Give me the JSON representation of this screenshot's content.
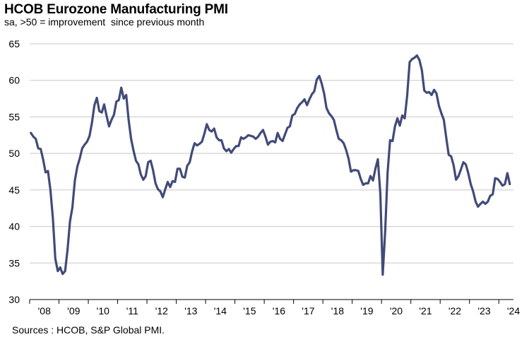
{
  "title": "HCOB Eurozone Manufacturing PMI",
  "subtitle": "sa, >50 = improvement  since previous month",
  "source": "Sources : HCOB, S&P Global PMI.",
  "line_color": "#414b79",
  "grid_color": "#c8c8c8",
  "chart_data": {
    "type": "line",
    "title": "HCOB Eurozone Manufacturing PMI",
    "xlabel": "",
    "ylabel": "",
    "grid": true,
    "ylim": [
      30,
      65
    ],
    "xlim": [
      2008.0,
      2024.5
    ],
    "y_ticks": [
      30,
      35,
      40,
      45,
      50,
      55,
      60,
      65
    ],
    "x_tick_labels": [
      "'08",
      "'09",
      "'10",
      "'11",
      "'12",
      "'13",
      "'14",
      "'15",
      "'16",
      "'17",
      "'18",
      "'19",
      "'20",
      "'21",
      "'22",
      "'23",
      "'24"
    ],
    "series": [
      {
        "name": "HCOB Eurozone Manufacturing PMI",
        "x_start": 2008.0,
        "frequency": "monthly",
        "values": [
          52.8,
          52.3,
          52.0,
          50.7,
          50.6,
          49.2,
          47.4,
          47.6,
          45.0,
          41.1,
          35.6,
          33.9,
          34.4,
          33.5,
          33.9,
          36.8,
          40.7,
          42.6,
          46.3,
          48.2,
          49.3,
          50.7,
          51.2,
          51.6,
          52.4,
          54.2,
          56.6,
          57.6,
          55.8,
          55.6,
          56.7,
          55.1,
          53.7,
          54.6,
          55.3,
          57.1,
          57.3,
          59.0,
          57.5,
          58.0,
          54.6,
          52.0,
          50.4,
          49.0,
          48.5,
          47.1,
          46.4,
          46.9,
          48.8,
          49.0,
          47.7,
          45.9,
          45.1,
          44.8,
          44.0,
          45.1,
          46.1,
          45.4,
          46.2,
          46.1,
          47.9,
          47.9,
          46.8,
          46.7,
          48.3,
          48.8,
          50.3,
          51.4,
          51.1,
          51.3,
          51.6,
          52.7,
          54.0,
          53.2,
          53.0,
          53.4,
          52.2,
          51.8,
          51.8,
          50.7,
          50.3,
          50.6,
          50.1,
          50.6,
          51.0,
          51.0,
          52.2,
          52.0,
          52.2,
          52.5,
          52.4,
          52.3,
          52.0,
          52.3,
          52.8,
          53.2,
          52.3,
          51.2,
          51.6,
          51.7,
          51.5,
          52.8,
          52.0,
          51.7,
          52.6,
          53.5,
          53.7,
          55.2,
          55.4,
          56.2,
          56.7,
          57.0,
          57.4,
          56.6,
          57.4,
          58.1,
          58.5,
          60.1,
          60.6,
          59.6,
          58.2,
          56.2,
          55.5,
          55.1,
          54.6,
          53.2,
          52.0,
          51.8,
          51.4,
          50.5,
          49.3,
          47.5,
          47.7,
          47.7,
          47.6,
          46.5,
          45.7,
          45.9,
          45.9,
          46.9,
          46.3,
          47.9,
          49.2,
          44.5,
          33.4,
          39.4,
          47.4,
          51.8,
          51.7,
          53.7,
          54.8,
          53.8,
          55.2,
          54.8,
          57.9,
          62.5,
          62.9,
          63.1,
          63.4,
          62.8,
          61.4,
          58.6,
          58.3,
          58.4,
          58.0,
          58.7,
          58.2,
          56.5,
          55.5,
          54.6,
          52.1,
          49.8,
          49.6,
          48.4,
          46.4,
          46.9,
          47.8,
          48.8,
          48.5,
          47.3,
          45.8,
          44.8,
          43.4,
          42.7,
          43.1,
          43.4,
          43.1,
          43.4,
          44.2,
          44.4,
          46.6,
          46.5,
          46.1,
          45.6,
          45.8,
          47.3,
          45.8
        ]
      }
    ]
  }
}
